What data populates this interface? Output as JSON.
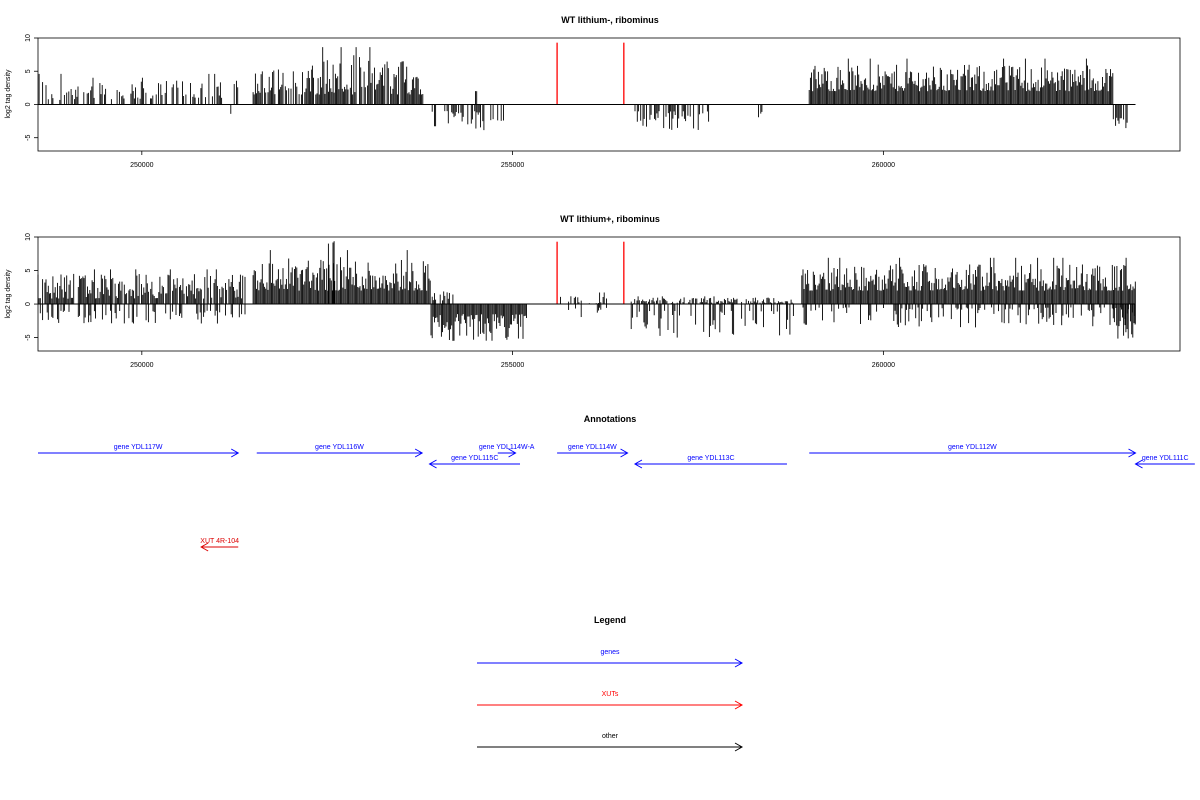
{
  "chart_data": [
    {
      "type": "bar",
      "title": "WT lithium-, ribominus",
      "xlabel": "",
      "ylabel": "log2 tag density",
      "xlim": [
        248600,
        264000
      ],
      "ylim": [
        -7,
        10
      ],
      "xticks": [
        250000,
        255000,
        260000
      ],
      "yticks": [
        10,
        5,
        0,
        -5
      ],
      "grid": false,
      "markers": {
        "color": "#ff0000",
        "x": [
          255600,
          256500
        ],
        "y": 9.3
      },
      "segments": [
        {
          "x": [
            248600,
            249000
          ],
          "pos": [
            0.5,
            4.0
          ],
          "neg": [
            0,
            0
          ],
          "density": 0.4
        },
        {
          "x": [
            249000,
            250300
          ],
          "pos": [
            0.8,
            3.5
          ],
          "neg": [
            0,
            0
          ],
          "density": 0.5
        },
        {
          "x": [
            250300,
            251300
          ],
          "pos": [
            1.0,
            4.0
          ],
          "neg": [
            0,
            0
          ],
          "density": 0.55
        },
        {
          "x": [
            251200,
            251300
          ],
          "pos": [
            0,
            0
          ],
          "neg": [
            -1.0,
            -2.5
          ],
          "density": 0.3
        },
        {
          "x": [
            251500,
            252300
          ],
          "pos": [
            1.5,
            5.5
          ],
          "neg": [
            0,
            0
          ],
          "density": 0.7
        },
        {
          "x": [
            252300,
            253800
          ],
          "pos": [
            1.5,
            7.5
          ],
          "neg": [
            0,
            0
          ],
          "density": 0.9
        },
        {
          "x": [
            253900,
            254900
          ],
          "pos": [
            0,
            0
          ],
          "neg": [
            -1.0,
            -4.0
          ],
          "density": 0.45
        },
        {
          "x": [
            254500,
            254520
          ],
          "pos": [
            2.0,
            2.0
          ],
          "neg": [
            0,
            0
          ],
          "density": 1.0
        },
        {
          "x": [
            256650,
            257700
          ],
          "pos": [
            0,
            0
          ],
          "neg": [
            -1.0,
            -4.0
          ],
          "density": 0.5
        },
        {
          "x": [
            258300,
            258400
          ],
          "pos": [
            0,
            0
          ],
          "neg": [
            -1.0,
            -2.0
          ],
          "density": 0.3
        },
        {
          "x": [
            259000,
            263100
          ],
          "pos": [
            2.0,
            6.0
          ],
          "neg": [
            0,
            0
          ],
          "density": 1.0
        },
        {
          "x": [
            263100,
            263300
          ],
          "pos": [
            0,
            0
          ],
          "neg": [
            -2.0,
            -4.5
          ],
          "density": 0.8
        }
      ]
    },
    {
      "type": "bar",
      "title": "WT lithium+, ribominus",
      "xlabel": "",
      "ylabel": "log2 tag density",
      "xlim": [
        248600,
        264000
      ],
      "ylim": [
        -7,
        10
      ],
      "xticks": [
        250000,
        255000,
        260000
      ],
      "yticks": [
        10,
        5,
        0,
        -5
      ],
      "grid": false,
      "markers": {
        "color": "#ff0000",
        "x": [
          255600,
          256500
        ],
        "y": 9.3
      },
      "segments": [
        {
          "x": [
            248600,
            251400
          ],
          "pos": [
            0.8,
            4.5
          ],
          "neg": [
            -1.0,
            -3.0
          ],
          "density": 0.9
        },
        {
          "x": [
            251500,
            253900
          ],
          "pos": [
            2.0,
            7.0
          ],
          "neg": [
            0,
            0
          ],
          "density": 1.0
        },
        {
          "x": [
            252500,
            252600
          ],
          "pos": [
            9.0,
            9.5
          ],
          "neg": [
            0,
            0
          ],
          "density": 0.5
        },
        {
          "x": [
            253900,
            255200
          ],
          "pos": [
            0,
            0
          ],
          "neg": [
            -1.5,
            -5.5
          ],
          "density": 1.0
        },
        {
          "x": [
            253900,
            254200
          ],
          "pos": [
            0.5,
            2.0
          ],
          "neg": [
            0,
            0
          ],
          "density": 0.4
        },
        {
          "x": [
            255600,
            256300
          ],
          "pos": [
            0,
            1.5
          ],
          "neg": [
            -0.5,
            -2.0
          ],
          "density": 0.3
        },
        {
          "x": [
            256600,
            258800
          ],
          "pos": [
            0,
            1.0
          ],
          "neg": [
            -1.0,
            -5.0
          ],
          "density": 1.0
        },
        {
          "x": [
            258900,
            263400
          ],
          "pos": [
            2.0,
            6.0
          ],
          "neg": [
            -0.5,
            -3.5
          ],
          "density": 1.0
        },
        {
          "x": [
            263100,
            263400
          ],
          "pos": [
            0,
            0
          ],
          "neg": [
            -2.0,
            -5.5
          ],
          "density": 0.9
        }
      ]
    }
  ],
  "annotations": {
    "title": "Annotations",
    "features": [
      {
        "label": "gene YDL117W",
        "type": "gene",
        "start": 248600,
        "end": 251300,
        "strand": "+",
        "row": 0
      },
      {
        "label": "gene YDL116W",
        "type": "gene",
        "start": 251550,
        "end": 253780,
        "strand": "+",
        "row": 0
      },
      {
        "label": "gene YDL114W-A",
        "type": "gene",
        "start": 254800,
        "end": 255040,
        "strand": "+",
        "row": 0
      },
      {
        "label": "gene YDL115C",
        "type": "gene",
        "start": 253880,
        "end": 255100,
        "strand": "-",
        "row": 1
      },
      {
        "label": "gene YDL114W",
        "type": "gene",
        "start": 255600,
        "end": 256550,
        "strand": "+",
        "row": 0
      },
      {
        "label": "gene YDL113C",
        "type": "gene",
        "start": 256650,
        "end": 258700,
        "strand": "-",
        "row": 1
      },
      {
        "label": "gene YDL112W",
        "type": "gene",
        "start": 259000,
        "end": 263400,
        "strand": "+",
        "row": 0
      },
      {
        "label": "gene YDL111C",
        "type": "gene",
        "start": 263400,
        "end": 264200,
        "strand": "-",
        "row": 1
      },
      {
        "label": "XUT 4R-104",
        "type": "xut",
        "start": 250800,
        "end": 251300,
        "strand": "-",
        "row": 2
      }
    ]
  },
  "legend": {
    "title": "Legend",
    "items": [
      {
        "label": "genes",
        "color": "#0000ff"
      },
      {
        "label": "XUTs",
        "color": "#ff0000"
      },
      {
        "label": "other",
        "color": "#000000"
      }
    ]
  }
}
